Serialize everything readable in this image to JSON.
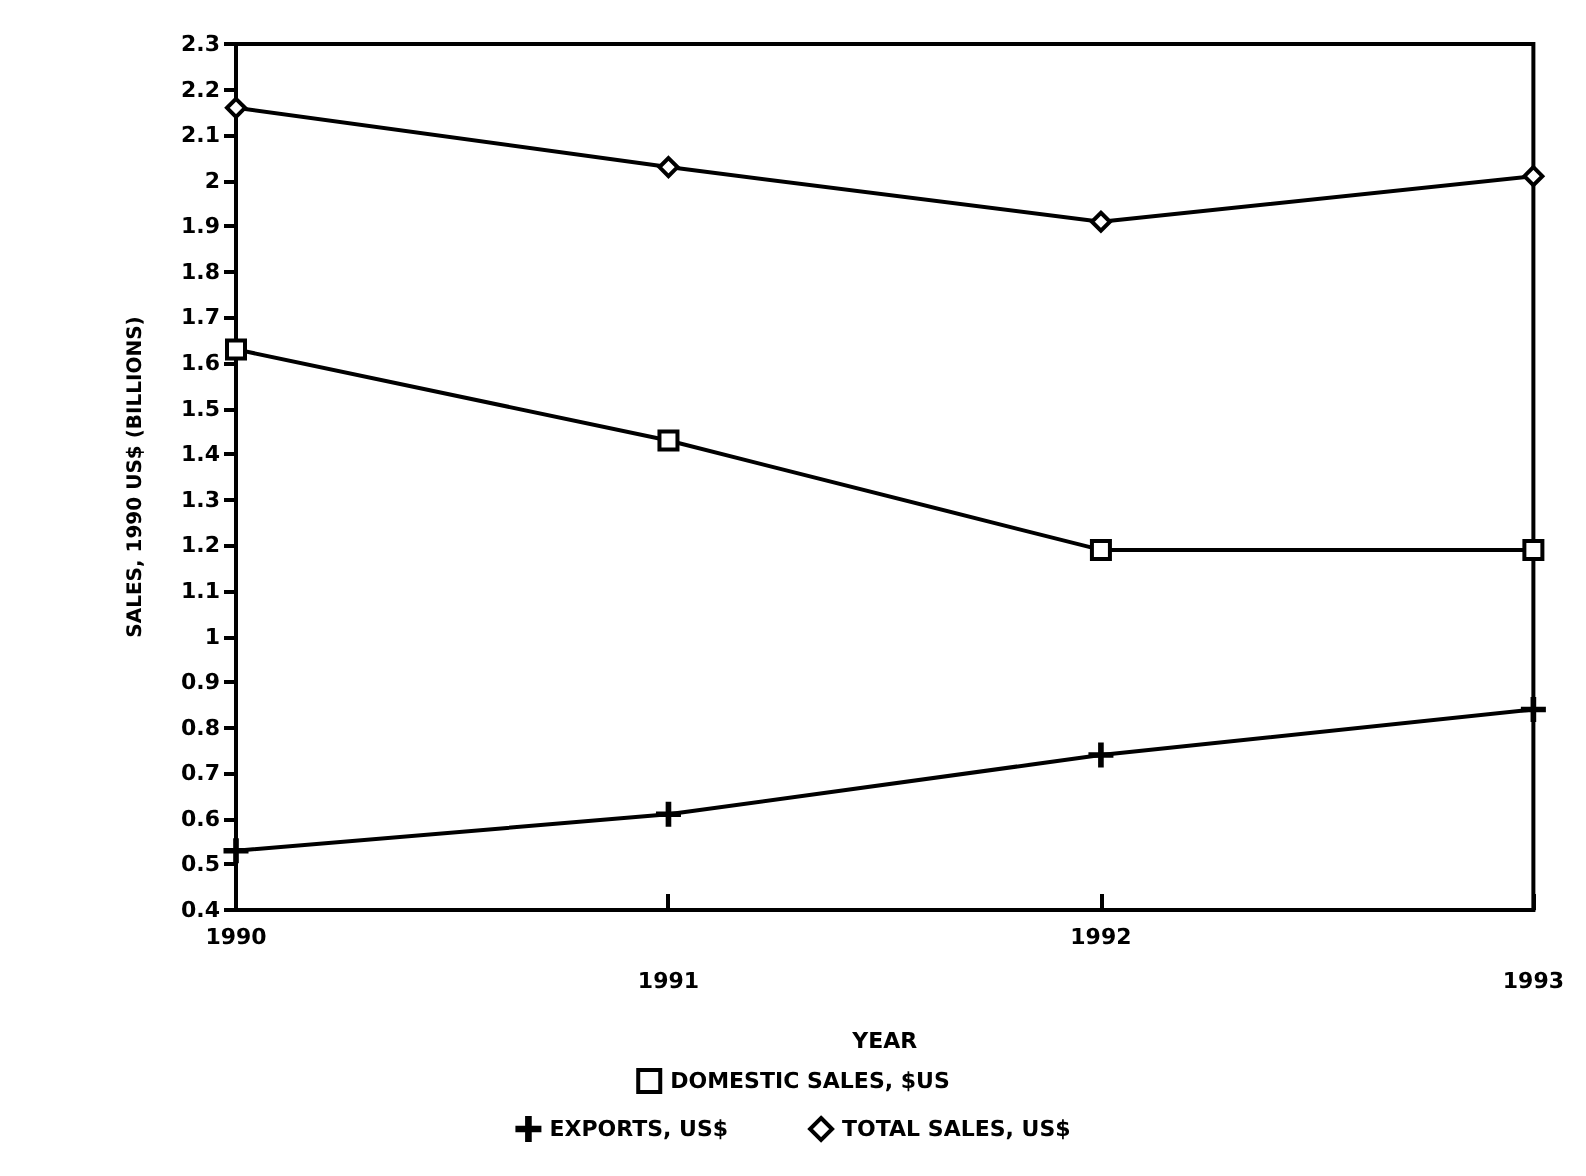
{
  "chart_data": {
    "type": "line",
    "xlabel": "YEAR",
    "ylabel": "SALES, 1990 US$ (BILLIONS)",
    "categories": [
      "1990",
      "1991",
      "1992",
      "1993"
    ],
    "series": [
      {
        "name": "DOMESTIC SALES, $US",
        "color": "#000000",
        "marker": "square",
        "values": [
          1.63,
          1.43,
          1.19,
          1.19
        ]
      },
      {
        "name": "EXPORTS, US$",
        "color": "#000000",
        "marker": "cross",
        "values": [
          0.53,
          0.61,
          0.74,
          0.84
        ]
      },
      {
        "name": "TOTAL SALES, US$",
        "color": "#000000",
        "marker": "diamond",
        "values": [
          2.16,
          2.03,
          1.91,
          2.01
        ]
      }
    ],
    "ylim": [
      0.4,
      2.3
    ],
    "yticks": [
      0.4,
      0.5,
      0.6,
      0.7,
      0.8,
      0.9,
      1,
      1.1,
      1.2,
      1.3,
      1.4,
      1.5,
      1.6,
      1.7,
      1.8,
      1.9,
      2,
      2.1,
      2.2,
      2.3
    ],
    "grid": false,
    "legend": "bottom",
    "line_style": "solid"
  }
}
